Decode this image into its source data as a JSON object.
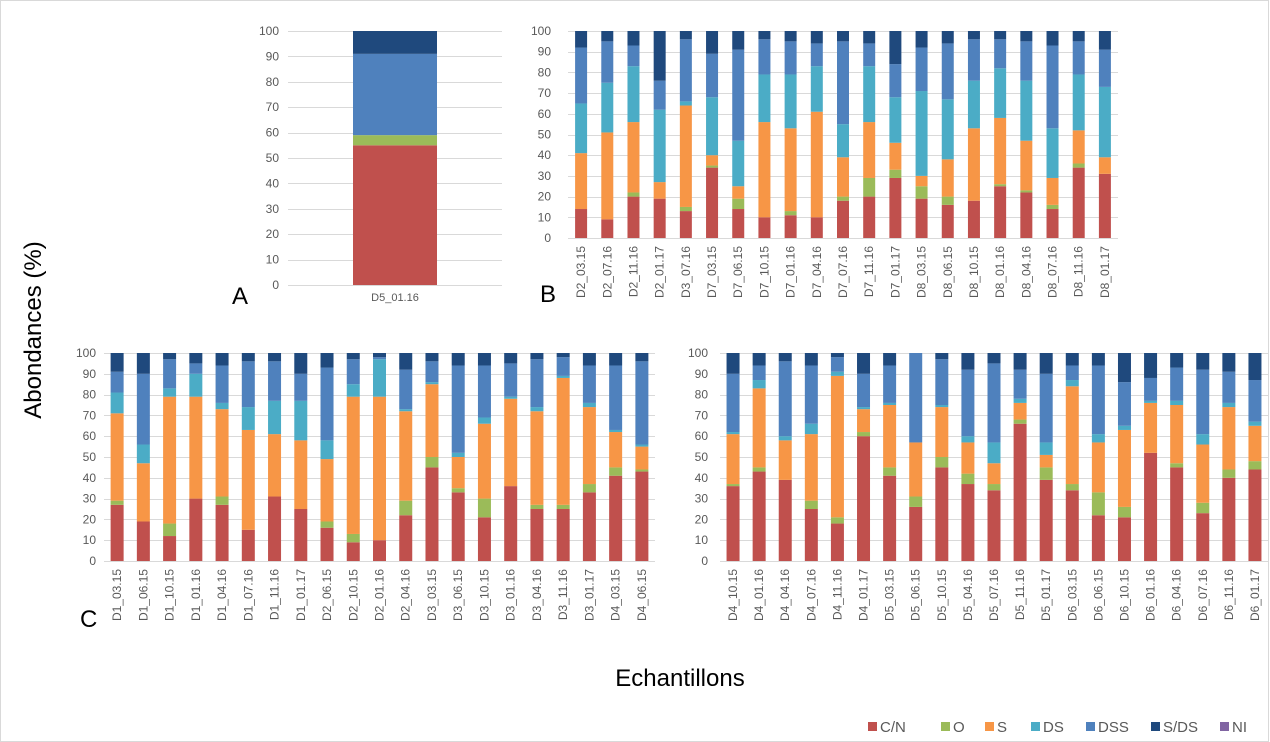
{
  "figure": {
    "ylabel": "Abondances (%)",
    "xlabel": "Echantillons",
    "panel_labels": {
      "a": "A",
      "b": "B",
      "c": "C"
    }
  },
  "legend": {
    "position": "bottom-right",
    "items": [
      {
        "name": "C/N",
        "color": "#c0504d"
      },
      {
        "name": "O",
        "color": "#9bbb59"
      },
      {
        "name": "S",
        "color": "#f79646"
      },
      {
        "name": "DS",
        "color": "#4bacc6"
      },
      {
        "name": "DSS",
        "color": "#4f81bd"
      },
      {
        "name": "S/DS",
        "color": "#1f497d"
      },
      {
        "name": "NI",
        "color": "#8064a2"
      }
    ]
  },
  "chart_data": [
    {
      "type": "bar",
      "stacked": true,
      "grid": true,
      "ylim": [
        0,
        100
      ],
      "yticks": [
        0,
        10,
        20,
        30,
        40,
        50,
        60,
        70,
        80,
        90,
        100
      ],
      "categories": [
        "D5_01.16"
      ],
      "series": [
        {
          "name": "C/N",
          "color": "#c0504d",
          "values": [
            55
          ]
        },
        {
          "name": "O",
          "color": "#9bbb59",
          "values": [
            4
          ]
        },
        {
          "name": "S",
          "color": "#f79646",
          "values": [
            0
          ]
        },
        {
          "name": "DS",
          "color": "#4bacc6",
          "values": [
            0
          ]
        },
        {
          "name": "DSS",
          "color": "#4f81bd",
          "values": [
            32
          ]
        },
        {
          "name": "S/DS",
          "color": "#1f497d",
          "values": [
            9
          ]
        },
        {
          "name": "NI",
          "color": "#8064a2",
          "values": [
            0
          ]
        }
      ]
    },
    {
      "type": "bar",
      "stacked": true,
      "grid": true,
      "ylim": [
        0,
        100
      ],
      "yticks": [
        0,
        10,
        20,
        30,
        40,
        50,
        60,
        70,
        80,
        90,
        100
      ],
      "categories": [
        "D2_03.15",
        "D2_07.16",
        "D2_11.16",
        "D2_01.17",
        "D3_07.16",
        "D7_03.15",
        "D7_06.15",
        "D7_10.15",
        "D7_01.16",
        "D7_04.16",
        "D7_07.16",
        "D7_11.16",
        "D7_01.17",
        "D8_03.15",
        "D8_06.15",
        "D8_10.15",
        "D8_01.16",
        "D8_04.16",
        "D8_07.16",
        "D8_11.16",
        "D8_01.17"
      ],
      "series": [
        {
          "name": "C/N",
          "color": "#c0504d",
          "values": [
            14,
            9,
            20,
            19,
            13,
            34,
            14,
            10,
            11,
            10,
            18,
            20,
            29,
            19,
            16,
            18,
            25,
            22,
            14,
            34,
            31
          ]
        },
        {
          "name": "O",
          "color": "#9bbb59",
          "values": [
            0,
            0,
            2,
            0,
            2,
            1,
            5,
            0,
            2,
            0,
            2,
            9,
            4,
            6,
            4,
            0,
            1,
            1,
            2,
            2,
            0
          ]
        },
        {
          "name": "S",
          "color": "#f79646",
          "values": [
            27,
            42,
            34,
            8,
            49,
            5,
            6,
            46,
            40,
            51,
            19,
            27,
            13,
            5,
            18,
            35,
            32,
            24,
            13,
            16,
            8
          ]
        },
        {
          "name": "DS",
          "color": "#4bacc6",
          "values": [
            24,
            24,
            27,
            35,
            2,
            28,
            22,
            23,
            26,
            22,
            16,
            27,
            22,
            41,
            29,
            23,
            24,
            29,
            24,
            27,
            34
          ]
        },
        {
          "name": "DSS",
          "color": "#4f81bd",
          "values": [
            27,
            20,
            10,
            14,
            30,
            21,
            44,
            17,
            16,
            11,
            40,
            11,
            16,
            21,
            27,
            20,
            14,
            19,
            40,
            16,
            18
          ]
        },
        {
          "name": "S/DS",
          "color": "#1f497d",
          "values": [
            8,
            5,
            7,
            24,
            4,
            11,
            9,
            4,
            5,
            6,
            5,
            6,
            16,
            8,
            6,
            4,
            4,
            5,
            7,
            5,
            9
          ]
        },
        {
          "name": "NI",
          "color": "#8064a2",
          "values": [
            0,
            0,
            0,
            0,
            0,
            0,
            0,
            0,
            0,
            0,
            0,
            0,
            0,
            0,
            0,
            0,
            0,
            0,
            0,
            0,
            0
          ]
        }
      ]
    },
    {
      "type": "bar",
      "stacked": true,
      "grid": true,
      "ylim": [
        0,
        100
      ],
      "yticks": [
        0,
        10,
        20,
        30,
        40,
        50,
        60,
        70,
        80,
        90,
        100
      ],
      "categories": [
        "D1_03.15",
        "D1_06.15",
        "D1_10.15",
        "D1_01.16",
        "D1_04.16",
        "D1_07.16",
        "D1_11.16",
        "D1_01.17",
        "D2_06.15",
        "D2_10.15",
        "D2_01.16",
        "D2_04.16",
        "D3_03.15",
        "D3_06.15",
        "D3_10.15",
        "D3_01.16",
        "D3_04.16",
        "D3_11.16",
        "D3_01.17",
        "D4_03.15",
        "D4_06.15"
      ],
      "series": [
        {
          "name": "C/N",
          "color": "#c0504d",
          "values": [
            27,
            19,
            12,
            30,
            27,
            15,
            31,
            25,
            16,
            9,
            10,
            22,
            45,
            33,
            21,
            36,
            25,
            25,
            33,
            41,
            43
          ]
        },
        {
          "name": "O",
          "color": "#9bbb59",
          "values": [
            2,
            0,
            6,
            0,
            4,
            0,
            0,
            0,
            3,
            4,
            0,
            7,
            5,
            2,
            9,
            0,
            2,
            2,
            4,
            4,
            1
          ]
        },
        {
          "name": "S",
          "color": "#f79646",
          "values": [
            42,
            28,
            61,
            49,
            42,
            48,
            30,
            33,
            30,
            66,
            69,
            43,
            35,
            15,
            36,
            42,
            45,
            61,
            37,
            17,
            11
          ]
        },
        {
          "name": "DS",
          "color": "#4bacc6",
          "values": [
            10,
            9,
            4,
            11,
            3,
            11,
            16,
            19,
            9,
            6,
            18,
            1,
            1,
            2,
            3,
            1,
            2,
            1,
            2,
            1,
            1
          ]
        },
        {
          "name": "DSS",
          "color": "#4f81bd",
          "values": [
            10,
            34,
            14,
            5,
            18,
            22,
            19,
            13,
            35,
            12,
            1,
            19,
            10,
            42,
            25,
            16,
            23,
            9,
            18,
            31,
            40
          ]
        },
        {
          "name": "S/DS",
          "color": "#1f497d",
          "values": [
            9,
            10,
            3,
            5,
            6,
            4,
            4,
            10,
            7,
            3,
            2,
            8,
            4,
            6,
            6,
            5,
            3,
            2,
            6,
            6,
            4
          ]
        },
        {
          "name": "NI",
          "color": "#8064a2",
          "values": [
            0,
            0,
            0,
            0,
            0,
            0,
            0,
            0,
            0,
            0,
            0,
            0,
            0,
            0,
            0,
            0,
            0,
            0,
            0,
            0,
            0
          ]
        }
      ]
    },
    {
      "type": "bar",
      "stacked": true,
      "grid": true,
      "ylim": [
        0,
        100
      ],
      "yticks": [
        0,
        10,
        20,
        30,
        40,
        50,
        60,
        70,
        80,
        90,
        100
      ],
      "categories": [
        "D4_10.15",
        "D4_01.16",
        "D4_04.16",
        "D4_07.16",
        "D4_11.16",
        "D4_01.17",
        "D5_03.15",
        "D5_06.15",
        "D5_10.15",
        "D5_04.16",
        "D5_07.16",
        "D5_11.16",
        "D5_01.17",
        "D6_03.15",
        "D6_06.15",
        "D6_10.15",
        "D6_01.16",
        "D6_04.16",
        "D6_07.16",
        "D6_11.16",
        "D6_01.17"
      ],
      "series": [
        {
          "name": "C/N",
          "color": "#c0504d",
          "values": [
            36,
            43,
            39,
            25,
            18,
            60,
            41,
            26,
            45,
            37,
            34,
            66,
            39,
            34,
            22,
            21,
            52,
            45,
            23,
            40,
            44
          ]
        },
        {
          "name": "O",
          "color": "#9bbb59",
          "values": [
            1,
            2,
            0,
            4,
            3,
            2,
            4,
            5,
            5,
            5,
            3,
            2,
            6,
            3,
            11,
            5,
            0,
            2,
            5,
            4,
            4
          ]
        },
        {
          "name": "S",
          "color": "#f79646",
          "values": [
            24,
            38,
            19,
            32,
            68,
            11,
            30,
            26,
            24,
            15,
            10,
            8,
            6,
            47,
            24,
            37,
            24,
            28,
            28,
            30,
            17
          ]
        },
        {
          "name": "DS",
          "color": "#4bacc6",
          "values": [
            1,
            4,
            2,
            5,
            2,
            1,
            1,
            0,
            1,
            3,
            10,
            2,
            6,
            3,
            4,
            2,
            1,
            2,
            5,
            2,
            2
          ]
        },
        {
          "name": "DSS",
          "color": "#4f81bd",
          "values": [
            28,
            7,
            36,
            28,
            7,
            16,
            18,
            43,
            22,
            32,
            38,
            14,
            33,
            7,
            33,
            21,
            11,
            16,
            31,
            15,
            20
          ]
        },
        {
          "name": "S/DS",
          "color": "#1f497d",
          "values": [
            10,
            6,
            4,
            6,
            2,
            10,
            6,
            0,
            3,
            8,
            5,
            8,
            10,
            6,
            6,
            14,
            12,
            7,
            8,
            9,
            13
          ]
        },
        {
          "name": "NI",
          "color": "#8064a2",
          "values": [
            0,
            0,
            0,
            0,
            0,
            0,
            0,
            0,
            0,
            0,
            0,
            0,
            0,
            0,
            0,
            0,
            0,
            0,
            0,
            0,
            0
          ]
        }
      ]
    }
  ]
}
